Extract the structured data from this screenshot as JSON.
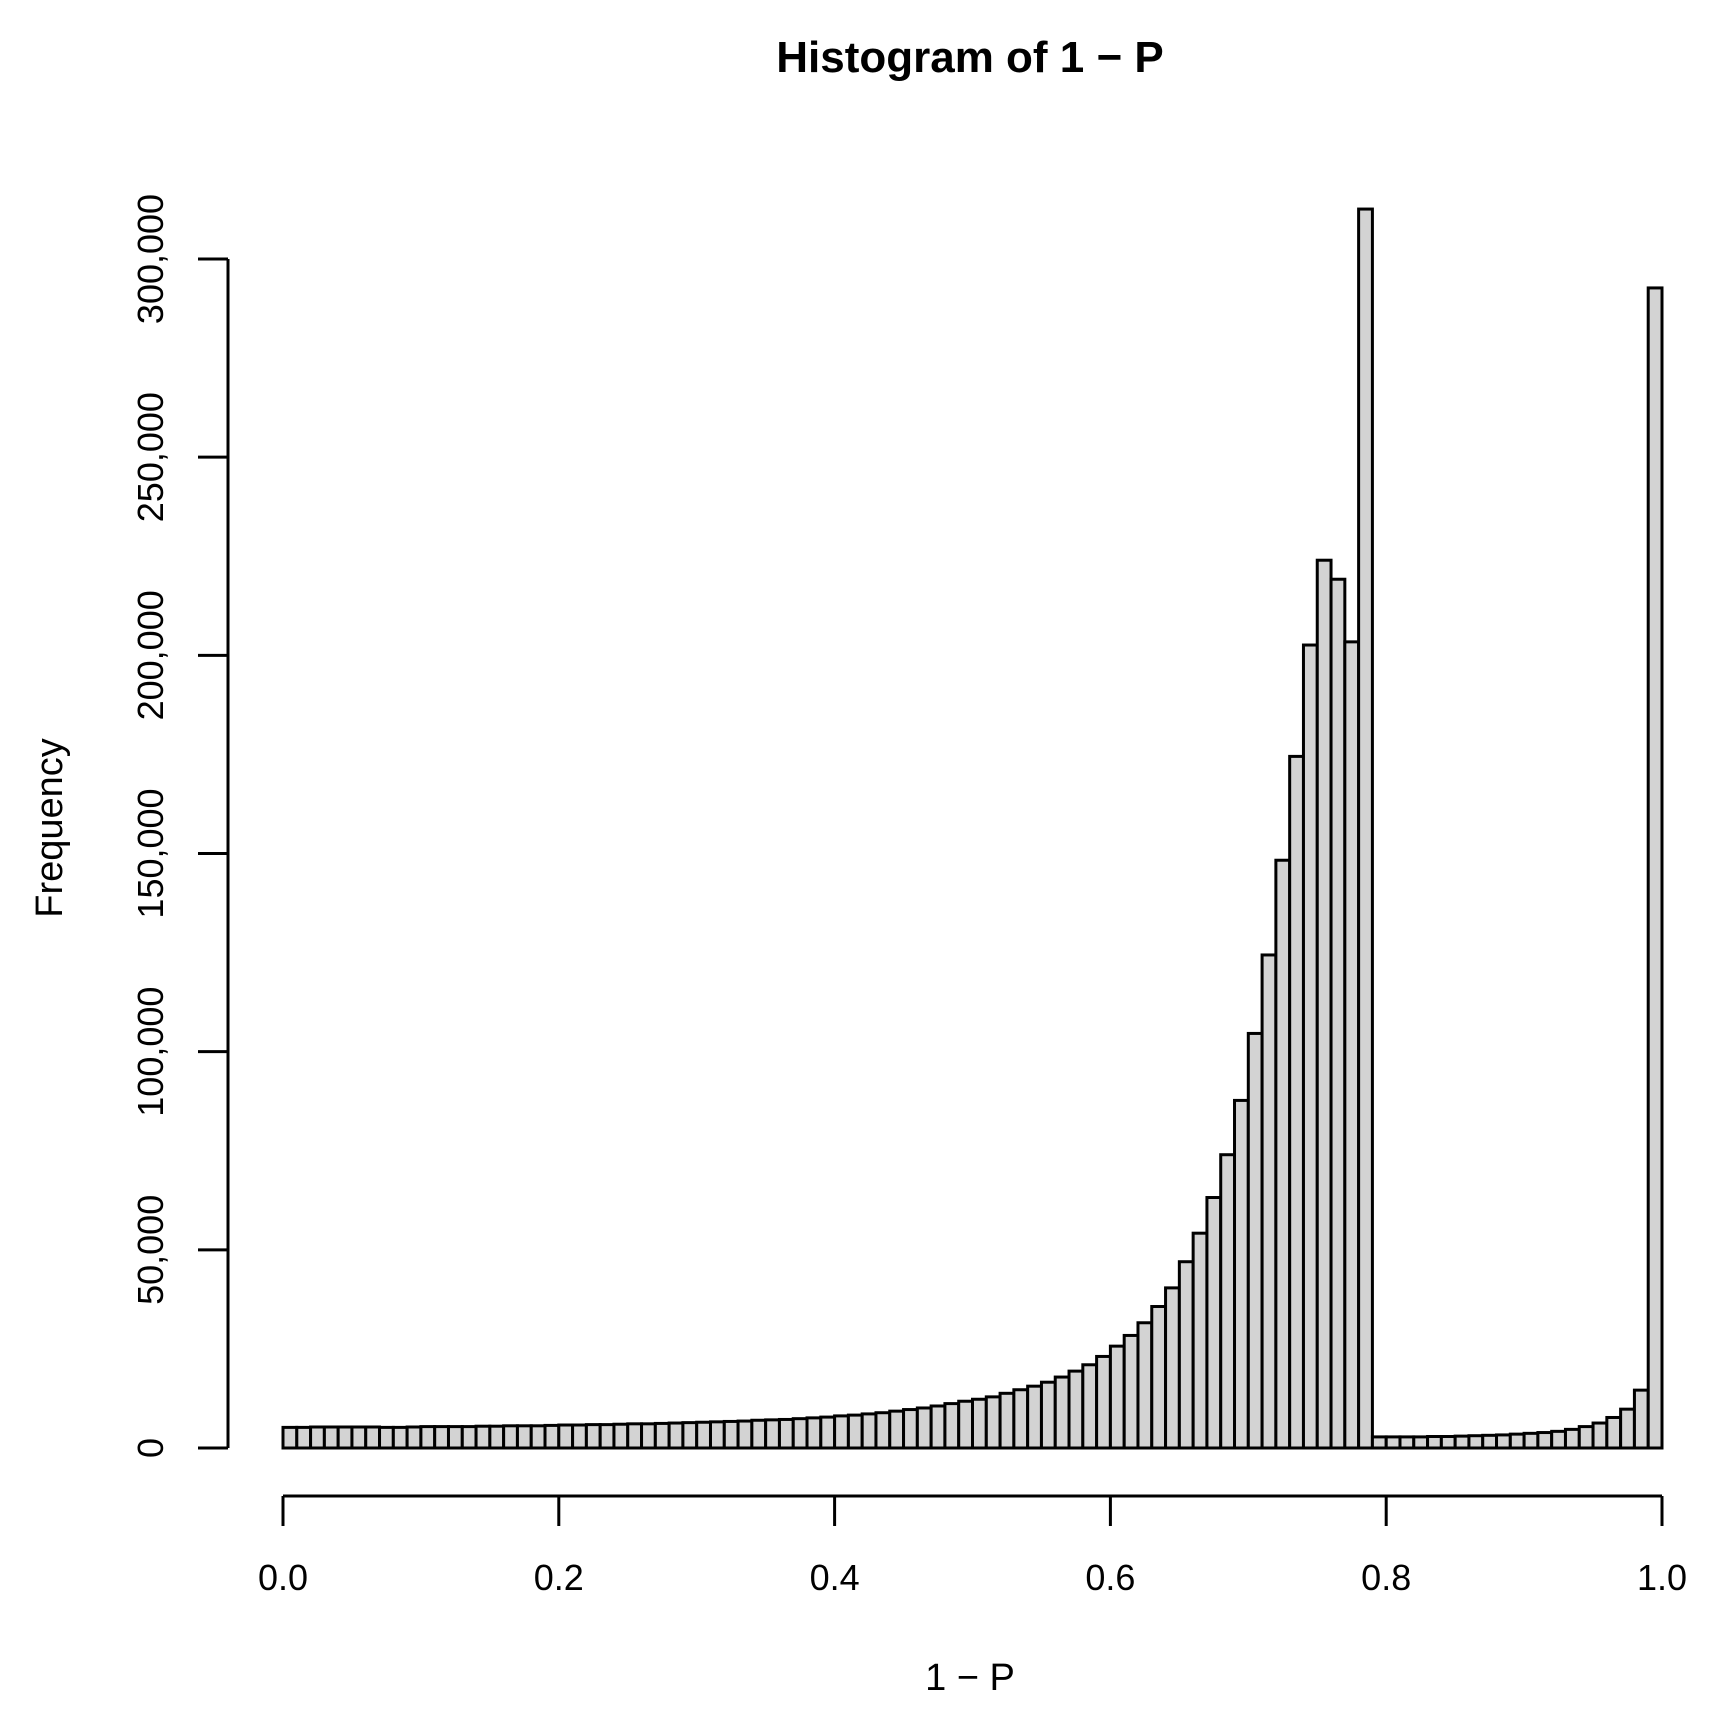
{
  "chart_data": {
    "type": "bar",
    "title": "Histogram of 1 − P",
    "xlabel": "1 − P",
    "ylabel": "Frequency",
    "xlim": [
      0,
      1
    ],
    "ylim": [
      0,
      300000
    ],
    "bin_width": 0.01,
    "x_ticks": [
      "0.0",
      "0.2",
      "0.4",
      "0.6",
      "0.8",
      "1.0"
    ],
    "y_ticks": [
      "0",
      "50,000",
      "100,000",
      "150,000",
      "200,000",
      "250,000",
      "300,000"
    ],
    "grid": false,
    "bar_color": "#d3d3d3",
    "edge_color": "#000000",
    "values": [
      5200,
      5200,
      5300,
      5300,
      5300,
      5300,
      5300,
      5200,
      5200,
      5300,
      5400,
      5400,
      5400,
      5400,
      5500,
      5500,
      5600,
      5600,
      5600,
      5700,
      5800,
      5800,
      5900,
      5900,
      6000,
      6100,
      6100,
      6200,
      6300,
      6400,
      6500,
      6600,
      6700,
      6800,
      7000,
      7100,
      7200,
      7400,
      7600,
      7800,
      8100,
      8300,
      8600,
      8900,
      9300,
      9700,
      10100,
      10600,
      11200,
      11800,
      12300,
      12900,
      13800,
      14700,
      15600,
      16600,
      17900,
      19400,
      21000,
      23100,
      25700,
      28400,
      31600,
      35700,
      40400,
      47000,
      54200,
      63200,
      74000,
      87700,
      104600,
      124400,
      148300,
      174500,
      202600,
      224000,
      219200,
      203400,
      312600,
      2800,
      2800,
      2800,
      2800,
      2900,
      2900,
      3000,
      3100,
      3200,
      3300,
      3500,
      3700,
      3900,
      4200,
      4700,
      5400,
      6300,
      7700,
      9800,
      14600,
      292700
    ]
  }
}
